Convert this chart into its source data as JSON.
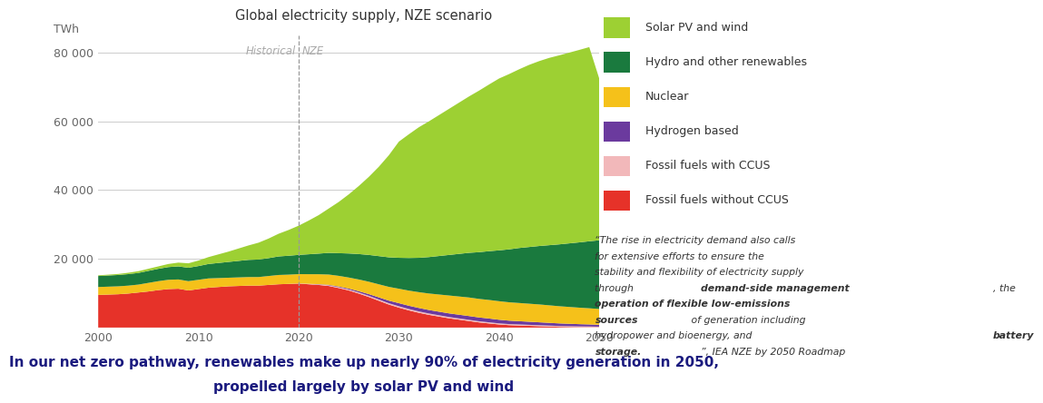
{
  "title": "Global electricity supply, NZE scenario",
  "ylabel": "TWh",
  "xlim": [
    2000,
    2050
  ],
  "ylim": [
    0,
    85000
  ],
  "yticks": [
    0,
    20000,
    40000,
    60000,
    80000
  ],
  "ytick_labels": [
    "",
    "20 000",
    "40 000",
    "60 000",
    "80 000"
  ],
  "xticks": [
    2000,
    2010,
    2020,
    2030,
    2040,
    2050
  ],
  "years": [
    2000,
    2001,
    2002,
    2003,
    2004,
    2005,
    2006,
    2007,
    2008,
    2009,
    2010,
    2011,
    2012,
    2013,
    2014,
    2015,
    2016,
    2017,
    2018,
    2019,
    2020,
    2021,
    2022,
    2023,
    2024,
    2025,
    2026,
    2027,
    2028,
    2029,
    2030,
    2031,
    2032,
    2033,
    2034,
    2035,
    2036,
    2037,
    2038,
    2039,
    2040,
    2041,
    2042,
    2043,
    2044,
    2045,
    2046,
    2047,
    2048,
    2049,
    2050
  ],
  "fossil_no_ccus": [
    9500,
    9600,
    9700,
    9900,
    10200,
    10500,
    10900,
    11200,
    11300,
    10800,
    11200,
    11600,
    11800,
    12000,
    12100,
    12200,
    12200,
    12400,
    12600,
    12700,
    12800,
    12600,
    12400,
    12100,
    11500,
    10800,
    9900,
    8900,
    7800,
    6700,
    5800,
    5000,
    4300,
    3700,
    3200,
    2700,
    2300,
    1900,
    1500,
    1200,
    900,
    700,
    600,
    500,
    400,
    300,
    200,
    150,
    100,
    80,
    50
  ],
  "fossil_ccus": [
    0,
    0,
    0,
    0,
    0,
    0,
    0,
    0,
    0,
    0,
    0,
    0,
    0,
    0,
    0,
    0,
    0,
    0,
    0,
    0,
    50,
    100,
    150,
    200,
    250,
    280,
    310,
    340,
    360,
    380,
    400,
    400,
    400,
    390,
    380,
    370,
    360,
    350,
    340,
    330,
    320,
    310,
    300,
    290,
    280,
    270,
    260,
    250,
    240,
    230,
    200
  ],
  "hydrogen": [
    0,
    0,
    0,
    0,
    0,
    0,
    0,
    0,
    0,
    0,
    0,
    0,
    0,
    0,
    0,
    0,
    0,
    0,
    0,
    0,
    0,
    30,
    70,
    130,
    200,
    280,
    380,
    500,
    630,
    760,
    900,
    950,
    1000,
    1020,
    1040,
    1060,
    1080,
    1100,
    1100,
    1100,
    1050,
    1000,
    950,
    900,
    850,
    800,
    750,
    700,
    650,
    600,
    550
  ],
  "nuclear": [
    2300,
    2300,
    2300,
    2300,
    2300,
    2500,
    2600,
    2700,
    2700,
    2700,
    2700,
    2700,
    2600,
    2500,
    2500,
    2500,
    2500,
    2600,
    2700,
    2700,
    2700,
    2800,
    2900,
    3000,
    3100,
    3200,
    3400,
    3600,
    3800,
    4000,
    4200,
    4400,
    4600,
    4800,
    5000,
    5200,
    5300,
    5400,
    5400,
    5400,
    5400,
    5350,
    5300,
    5250,
    5200,
    5100,
    5000,
    4900,
    4800,
    4700,
    4600
  ],
  "hydro_other": [
    3200,
    3250,
    3300,
    3350,
    3400,
    3500,
    3600,
    3700,
    3800,
    3900,
    4000,
    4200,
    4400,
    4600,
    4800,
    5000,
    5100,
    5200,
    5400,
    5500,
    5600,
    5800,
    6000,
    6300,
    6600,
    7000,
    7400,
    7800,
    8200,
    8600,
    9000,
    9500,
    10000,
    10600,
    11200,
    11800,
    12400,
    13000,
    13600,
    14200,
    14800,
    15400,
    16000,
    16500,
    17000,
    17500,
    18000,
    18500,
    19000,
    19500,
    20000
  ],
  "solar_wind": [
    200,
    250,
    300,
    400,
    500,
    600,
    700,
    900,
    1100,
    1300,
    1600,
    2000,
    2500,
    3000,
    3600,
    4200,
    4900,
    5700,
    6600,
    7500,
    8500,
    9800,
    11200,
    12900,
    14900,
    17200,
    19800,
    22700,
    26000,
    29700,
    33800,
    36000,
    38000,
    39500,
    41000,
    42500,
    44000,
    45500,
    47000,
    48500,
    50000,
    51000,
    52000,
    53000,
    53800,
    54500,
    55000,
    55500,
    56000,
    56500,
    47000
  ],
  "colors": {
    "fossil_no_ccus": "#e63229",
    "fossil_ccus": "#f2b8ba",
    "hydrogen": "#6b3a9e",
    "nuclear": "#f5c11a",
    "hydro_other": "#1a7a3e",
    "solar_wind": "#9dd033"
  },
  "legend_labels": [
    "Solar PV and wind",
    "Hydro and other renewables",
    "Nuclear",
    "Hydrogen based",
    "Fossil fuels with CCUS",
    "Fossil fuels without CCUS"
  ],
  "legend_colors": [
    "#9dd033",
    "#1a7a3e",
    "#f5c11a",
    "#6b3a9e",
    "#f2b8ba",
    "#e63229"
  ],
  "historical_label": "Historical",
  "nze_label": "NZE",
  "divider_year": 2020,
  "background_color": "#ffffff",
  "title_fontsize": 10.5,
  "axis_fontsize": 9,
  "legend_fontsize": 9,
  "bottom_fontsize": 11,
  "bottom_line1": "In our net zero pathway, renewables make up nearly 90% of electricity generation in 2050,",
  "bottom_line2": "propelled largely by solar PV and wind"
}
